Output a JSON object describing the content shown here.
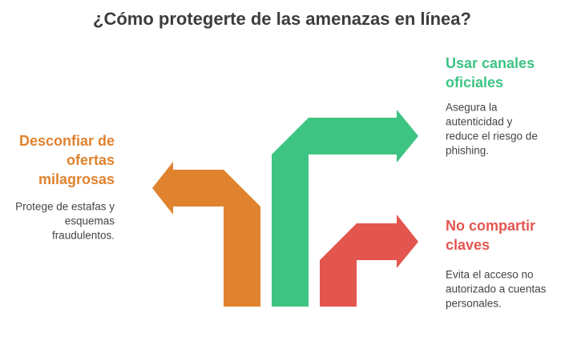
{
  "title": "¿Cómo protegerte de las amenazas en línea?",
  "items": [
    {
      "heading": [
        "Desconfiar de",
        "ofertas",
        "milagrosas"
      ],
      "description": [
        "Protege de estafas y",
        "esquemas",
        "fraudulentos."
      ],
      "color": "#E0832F"
    },
    {
      "heading": [
        "Usar canales",
        "oficiales"
      ],
      "description": [
        "Asegura la",
        "autenticidad y",
        "reduce el riesgo de",
        "phishing."
      ],
      "color": "#3DC483"
    },
    {
      "heading": [
        "No compartir",
        "claves"
      ],
      "description": [
        "Evita el acceso no",
        "autorizado a cuentas",
        "personales."
      ],
      "color": "#E35650"
    }
  ]
}
